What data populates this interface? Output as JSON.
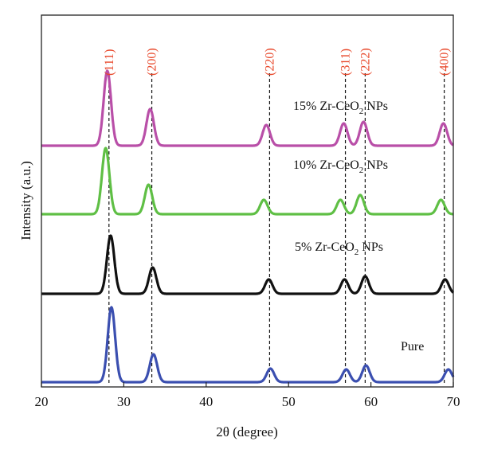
{
  "chart_data": {
    "type": "line",
    "xlabel": "2θ (degree)",
    "ylabel": "Intensity (a.u.)",
    "xlim": [
      20,
      70
    ],
    "x_ticks": [
      20,
      30,
      40,
      50,
      60,
      70
    ],
    "y_ticks_shown": false,
    "grid": false,
    "legend": "none",
    "reference_lines": [
      {
        "label": "(111)",
        "x": 28.2
      },
      {
        "label": "(200)",
        "x": 33.4
      },
      {
        "label": "(220)",
        "x": 47.7
      },
      {
        "label": "(311)",
        "x": 56.9
      },
      {
        "label": "(222)",
        "x": 59.3
      },
      {
        "label": "(400)",
        "x": 68.9
      }
    ],
    "series": [
      {
        "name": "Pure",
        "color": "#3b4fb0",
        "peaks": [
          {
            "x": 28.5,
            "height": 94
          },
          {
            "x": 33.6,
            "height": 35
          },
          {
            "x": 47.8,
            "height": 17
          },
          {
            "x": 57.0,
            "height": 16
          },
          {
            "x": 59.4,
            "height": 21
          },
          {
            "x": 69.4,
            "height": 16
          }
        ]
      },
      {
        "name": "5% Zr-CeO2 NPs",
        "color": "#111111",
        "peaks": [
          {
            "x": 28.4,
            "height": 73
          },
          {
            "x": 33.5,
            "height": 33
          },
          {
            "x": 47.6,
            "height": 18
          },
          {
            "x": 56.8,
            "height": 18
          },
          {
            "x": 59.3,
            "height": 22
          },
          {
            "x": 69.0,
            "height": 18
          }
        ]
      },
      {
        "name": "10% Zr-CeO2 NPs",
        "color": "#5fbf45",
        "peaks": [
          {
            "x": 27.8,
            "height": 83
          },
          {
            "x": 33.0,
            "height": 37
          },
          {
            "x": 47.0,
            "height": 18
          },
          {
            "x": 56.3,
            "height": 18
          },
          {
            "x": 58.7,
            "height": 24
          },
          {
            "x": 68.5,
            "height": 18
          }
        ]
      },
      {
        "name": "15% Zr-CeO2 NPs",
        "color": "#b94fa8",
        "peaks": [
          {
            "x": 28.0,
            "height": 94
          },
          {
            "x": 33.2,
            "height": 46
          },
          {
            "x": 47.3,
            "height": 26
          },
          {
            "x": 56.7,
            "height": 28
          },
          {
            "x": 59.1,
            "height": 30
          },
          {
            "x": 68.8,
            "height": 28
          }
        ]
      }
    ]
  }
}
